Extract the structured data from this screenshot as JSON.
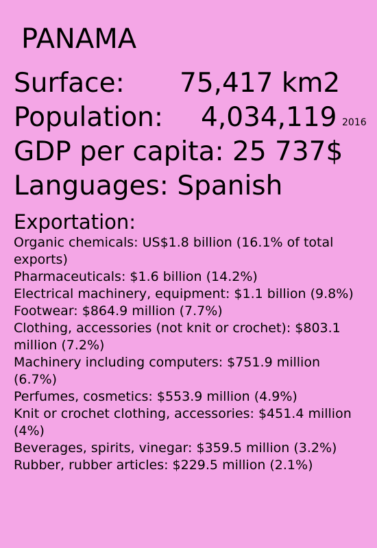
{
  "country": "PANAMA",
  "surface": {
    "label": "Surface:",
    "value": "75,417 km2"
  },
  "population": {
    "label": "Population:",
    "value": "4,034,119",
    "year": "2016"
  },
  "gdp": {
    "text": "GDP per capita: 25 737$"
  },
  "languages": {
    "text": "Languages: Spanish"
  },
  "exportation": {
    "heading": "Exportation:",
    "items": [
      "Organic chemicals: US$1.8 billion (16.1% of total exports)",
      "Pharmaceuticals: $1.6 billion (14.2%)",
      "Electrical machinery, equipment: $1.1 billion (9.8%)",
      "Footwear: $864.9 million (7.7%)",
      "Clothing, accessories (not knit or crochet): $803.1 million (7.2%)",
      "Machinery including computers: $751.9 million (6.7%)",
      "Perfumes, cosmetics: $553.9 million (4.9%)",
      "Knit or crochet clothing, accessories: $451.4 million (4%)",
      "Beverages, spirits, vinegar: $359.5 million (3.2%)",
      "Rubber, rubber articles: $229.5 million (2.1%)"
    ]
  },
  "colors": {
    "background": "#f4a6e6",
    "text": "#000000"
  }
}
